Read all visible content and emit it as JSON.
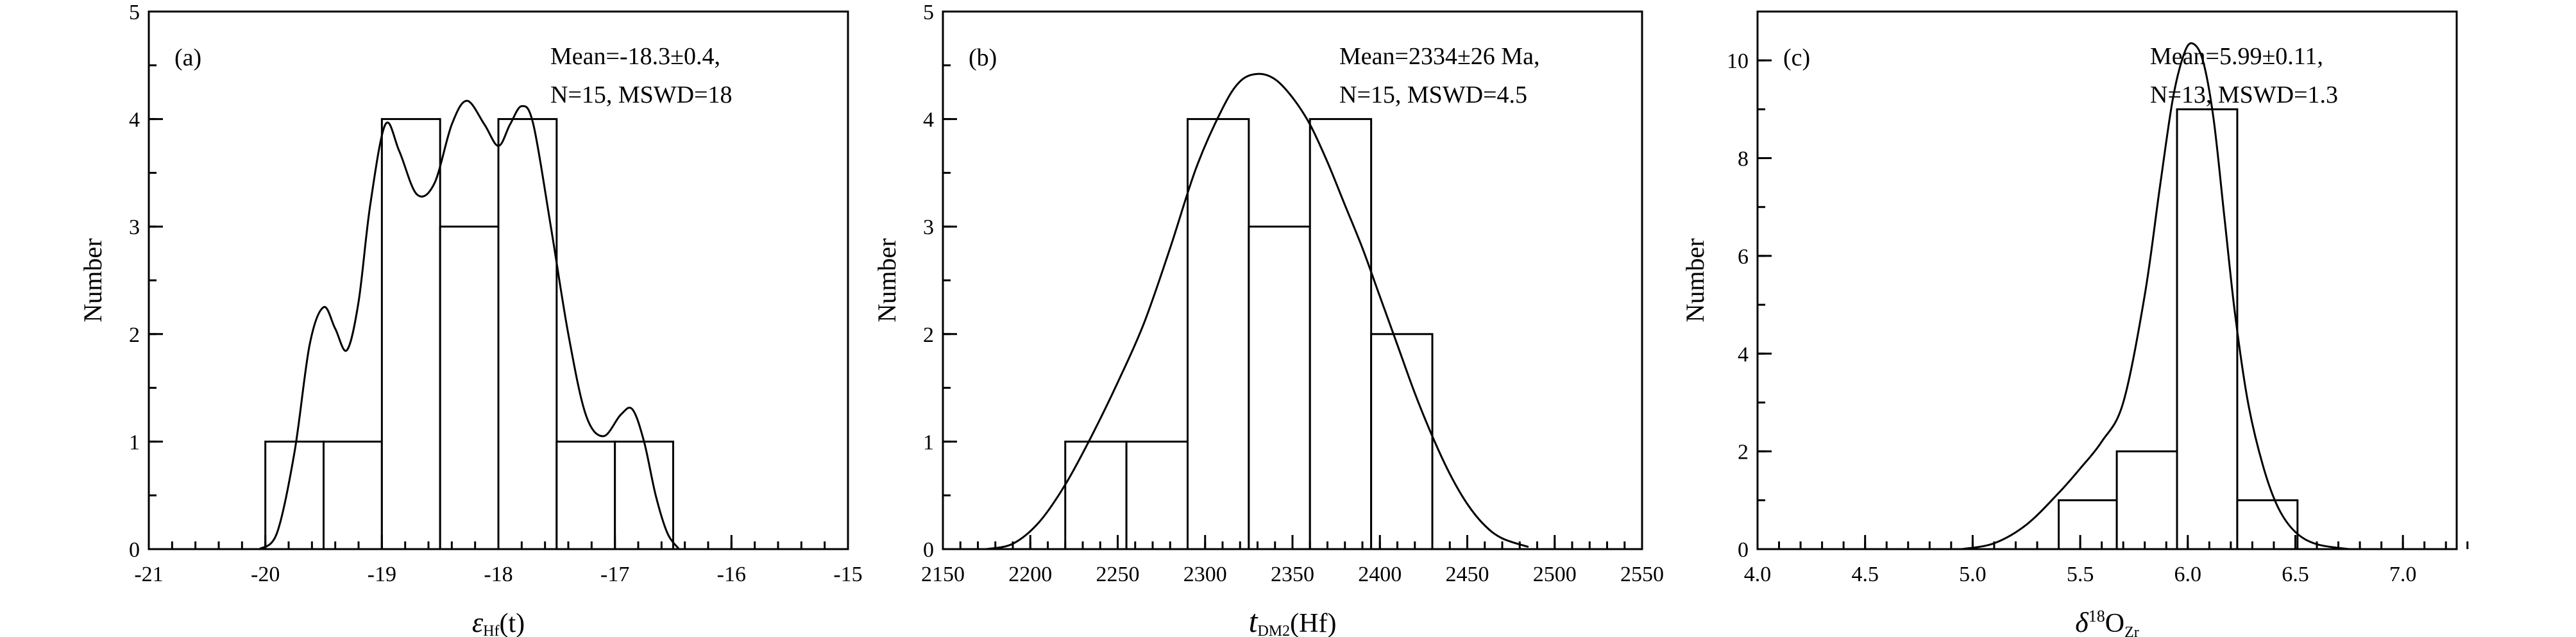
{
  "chart_data": [
    {
      "type": "bar",
      "panel_label": "(a)",
      "ylabel": "Number",
      "xlabel": {
        "main": "ε",
        "sub": "Hf",
        "rest": "(t)"
      },
      "xlim": [
        -21,
        -15
      ],
      "ylim": [
        0,
        5
      ],
      "x_major_ticks": [
        -21,
        -20,
        -19,
        -18,
        -17,
        -16,
        -15
      ],
      "x_minor_step": 0.2,
      "y_ticks": [
        0,
        1,
        2,
        3,
        4,
        5
      ],
      "y_minor_step": 0.5,
      "bins": [
        {
          "x0": -20.0,
          "x1": -19.5,
          "count": 1
        },
        {
          "x0": -19.5,
          "x1": -19.0,
          "count": 1
        },
        {
          "x0": -19.0,
          "x1": -18.5,
          "count": 4
        },
        {
          "x0": -18.5,
          "x1": -18.0,
          "count": 3
        },
        {
          "x0": -18.0,
          "x1": -17.5,
          "count": 4
        },
        {
          "x0": -17.5,
          "x1": -17.0,
          "count": 1
        },
        {
          "x0": -17.0,
          "x1": -16.5,
          "count": 1
        }
      ],
      "density_curve": [
        [
          -20.05,
          0.0
        ],
        [
          -19.9,
          0.15
        ],
        [
          -19.75,
          0.9
        ],
        [
          -19.62,
          1.9
        ],
        [
          -19.5,
          2.25
        ],
        [
          -19.4,
          2.05
        ],
        [
          -19.3,
          1.85
        ],
        [
          -19.2,
          2.3
        ],
        [
          -19.1,
          3.2
        ],
        [
          -18.97,
          3.95
        ],
        [
          -18.85,
          3.7
        ],
        [
          -18.7,
          3.3
        ],
        [
          -18.55,
          3.4
        ],
        [
          -18.4,
          3.95
        ],
        [
          -18.27,
          4.17
        ],
        [
          -18.12,
          3.95
        ],
        [
          -18.0,
          3.75
        ],
        [
          -17.9,
          3.95
        ],
        [
          -17.8,
          4.12
        ],
        [
          -17.7,
          3.95
        ],
        [
          -17.55,
          3.0
        ],
        [
          -17.4,
          2.0
        ],
        [
          -17.25,
          1.25
        ],
        [
          -17.1,
          1.05
        ],
        [
          -16.95,
          1.25
        ],
        [
          -16.85,
          1.3
        ],
        [
          -16.75,
          1.0
        ],
        [
          -16.65,
          0.5
        ],
        [
          -16.55,
          0.15
        ],
        [
          -16.45,
          0.0
        ]
      ],
      "annotations": [
        "Mean=-18.3±0.4,",
        "N=15, MSWD=18"
      ]
    },
    {
      "type": "bar",
      "panel_label": "(b)",
      "ylabel": "Number",
      "xlabel": {
        "main": "t",
        "sub": "DM2",
        "rest": "(Hf)"
      },
      "xlim": [
        2150,
        2550
      ],
      "ylim": [
        0,
        5
      ],
      "x_major_ticks": [
        2150,
        2200,
        2250,
        2300,
        2350,
        2400,
        2450,
        2500,
        2550
      ],
      "x_minor_step": 10,
      "y_ticks": [
        0,
        1,
        2,
        3,
        4,
        5
      ],
      "y_minor_step": 0.5,
      "bins": [
        {
          "x0": 2220,
          "x1": 2255,
          "count": 1
        },
        {
          "x0": 2255,
          "x1": 2290,
          "count": 1
        },
        {
          "x0": 2290,
          "x1": 2325,
          "count": 4
        },
        {
          "x0": 2325,
          "x1": 2360,
          "count": 3
        },
        {
          "x0": 2360,
          "x1": 2395,
          "count": 4
        },
        {
          "x0": 2395,
          "x1": 2430,
          "count": 2
        }
      ],
      "density_curve": [
        [
          2175,
          0.0
        ],
        [
          2190,
          0.05
        ],
        [
          2205,
          0.25
        ],
        [
          2220,
          0.6
        ],
        [
          2235,
          1.05
        ],
        [
          2250,
          1.55
        ],
        [
          2265,
          2.1
        ],
        [
          2280,
          2.8
        ],
        [
          2295,
          3.55
        ],
        [
          2310,
          4.1
        ],
        [
          2320,
          4.35
        ],
        [
          2330,
          4.42
        ],
        [
          2340,
          4.37
        ],
        [
          2350,
          4.2
        ],
        [
          2360,
          3.95
        ],
        [
          2370,
          3.6
        ],
        [
          2380,
          3.2
        ],
        [
          2390,
          2.8
        ],
        [
          2400,
          2.35
        ],
        [
          2410,
          1.9
        ],
        [
          2420,
          1.45
        ],
        [
          2430,
          1.05
        ],
        [
          2440,
          0.7
        ],
        [
          2450,
          0.42
        ],
        [
          2460,
          0.22
        ],
        [
          2470,
          0.1
        ],
        [
          2485,
          0.02
        ]
      ],
      "annotations": [
        "Mean=2334±26 Ma,",
        "N=15, MSWD=4.5"
      ]
    },
    {
      "type": "bar",
      "panel_label": "(c)",
      "ylabel": "Number",
      "xlabel": {
        "main": "δ",
        "sup": "18",
        "rest": "O",
        "sub": "Zr"
      },
      "xlim": [
        4.0,
        7.25
      ],
      "ylim": [
        0,
        11
      ],
      "x_major_ticks": [
        4.0,
        4.5,
        5.0,
        5.5,
        6.0,
        6.5,
        7.0
      ],
      "x_tick_labels": [
        "4.0",
        "4.5",
        "5.0",
        "5.5",
        "6.0",
        "6.5",
        "7.0"
      ],
      "x_minor_step": 0.1,
      "y_ticks": [
        0,
        2,
        4,
        6,
        8,
        10
      ],
      "y_minor_step": 1,
      "bins": [
        {
          "x0": 5.4,
          "x1": 5.67,
          "count": 1
        },
        {
          "x0": 5.67,
          "x1": 5.95,
          "count": 2
        },
        {
          "x0": 5.95,
          "x1": 6.23,
          "count": 9
        },
        {
          "x0": 6.23,
          "x1": 6.51,
          "count": 1
        }
      ],
      "density_curve": [
        [
          4.95,
          0.0
        ],
        [
          5.1,
          0.12
        ],
        [
          5.25,
          0.5
        ],
        [
          5.4,
          1.15
        ],
        [
          5.5,
          1.65
        ],
        [
          5.6,
          2.2
        ],
        [
          5.7,
          3.0
        ],
        [
          5.8,
          5.2
        ],
        [
          5.87,
          7.4
        ],
        [
          5.93,
          9.2
        ],
        [
          5.98,
          10.1
        ],
        [
          6.02,
          10.35
        ],
        [
          6.07,
          10.0
        ],
        [
          6.12,
          8.8
        ],
        [
          6.17,
          6.8
        ],
        [
          6.22,
          4.8
        ],
        [
          6.28,
          3.0
        ],
        [
          6.35,
          1.7
        ],
        [
          6.42,
          0.85
        ],
        [
          6.5,
          0.35
        ],
        [
          6.6,
          0.1
        ],
        [
          6.75,
          0.0
        ]
      ],
      "annotations": [
        "Mean=5.99±0.11,",
        "N=13, MSWD=1.3"
      ]
    }
  ]
}
